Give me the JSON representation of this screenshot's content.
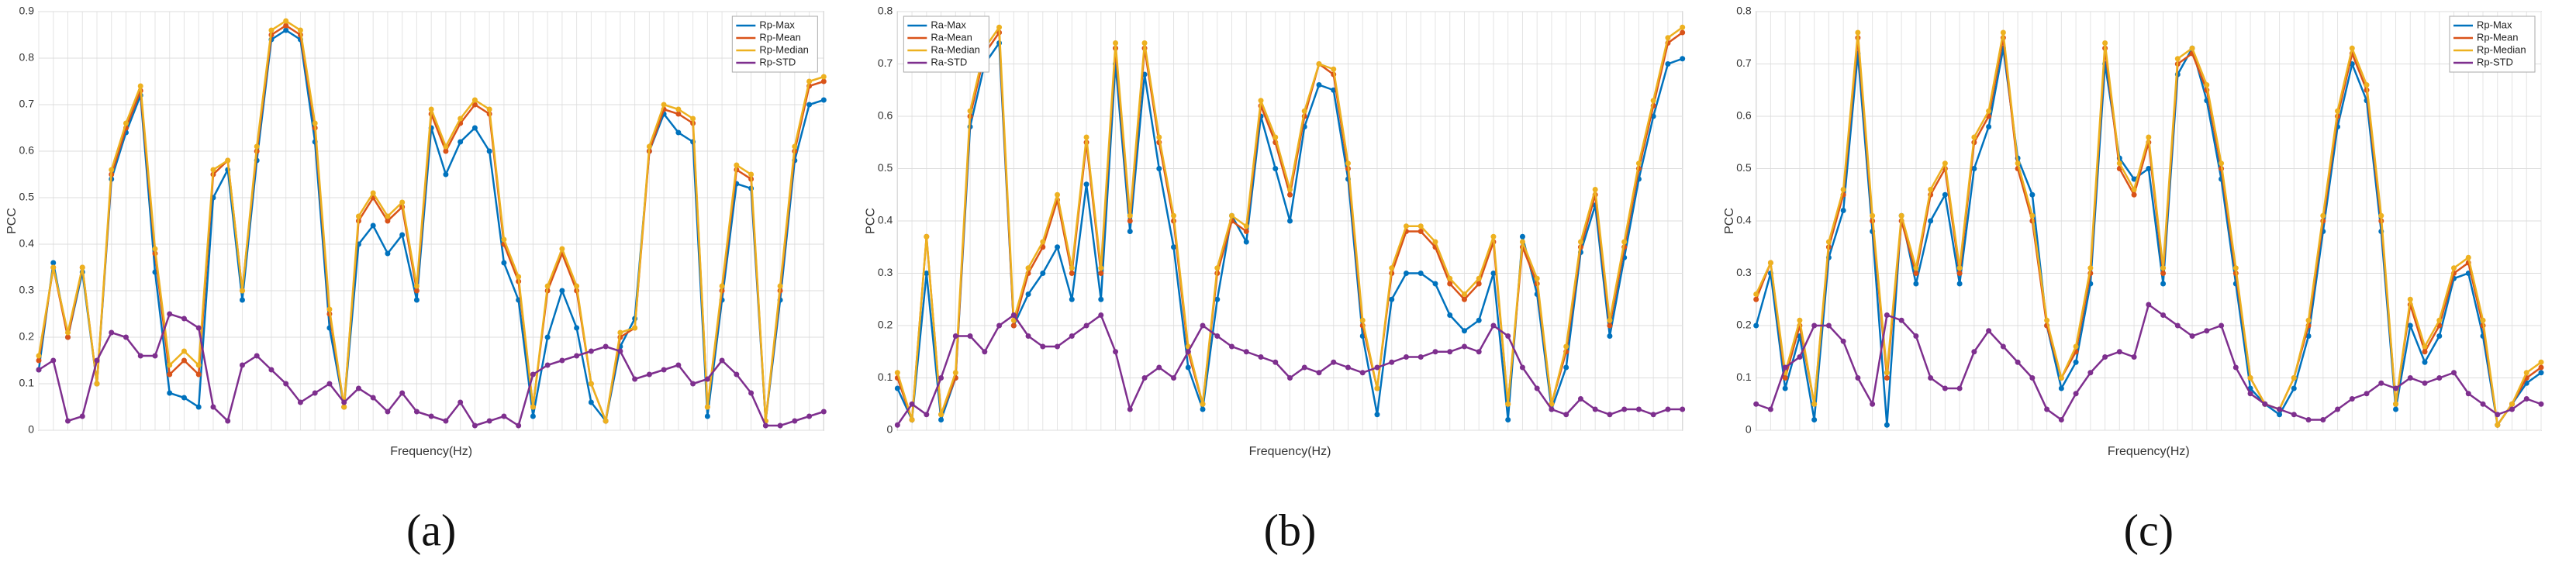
{
  "chart_data": [
    {
      "type": "line",
      "caption": "(a)",
      "ylabel": "PCC",
      "xlabel": "Frequency(Hz)",
      "ylim": [
        0,
        0.9
      ],
      "yticks": [
        0,
        0.1,
        0.2,
        0.3,
        0.4,
        0.5,
        0.6,
        0.7,
        0.8,
        0.9
      ],
      "grid": true,
      "legend": "top-right",
      "series": [
        {
          "name": "Rp-Max",
          "color": "#0072bd",
          "values": [
            0.13,
            0.36,
            0.2,
            0.34,
            0.1,
            0.54,
            0.64,
            0.72,
            0.34,
            0.08,
            0.07,
            0.05,
            0.5,
            0.56,
            0.28,
            0.58,
            0.84,
            0.86,
            0.84,
            0.62,
            0.22,
            0.05,
            0.4,
            0.44,
            0.38,
            0.42,
            0.28,
            0.65,
            0.55,
            0.62,
            0.65,
            0.6,
            0.36,
            0.28,
            0.03,
            0.2,
            0.3,
            0.22,
            0.06,
            0.02,
            0.18,
            0.24,
            0.6,
            0.68,
            0.64,
            0.62,
            0.03,
            0.28,
            0.53,
            0.52,
            0.02,
            0.28,
            0.58,
            0.7,
            0.71
          ]
        },
        {
          "name": "Rp-Mean",
          "color": "#d95319",
          "values": [
            0.15,
            0.35,
            0.2,
            0.35,
            0.1,
            0.55,
            0.65,
            0.73,
            0.38,
            0.12,
            0.15,
            0.12,
            0.55,
            0.58,
            0.3,
            0.6,
            0.85,
            0.87,
            0.85,
            0.65,
            0.25,
            0.05,
            0.45,
            0.5,
            0.45,
            0.48,
            0.3,
            0.68,
            0.6,
            0.66,
            0.7,
            0.68,
            0.4,
            0.32,
            0.05,
            0.3,
            0.38,
            0.3,
            0.1,
            0.02,
            0.2,
            0.22,
            0.6,
            0.69,
            0.68,
            0.66,
            0.05,
            0.3,
            0.56,
            0.54,
            0.02,
            0.3,
            0.6,
            0.74,
            0.75
          ]
        },
        {
          "name": "Rp-Median",
          "color": "#edb120",
          "values": [
            0.16,
            0.35,
            0.21,
            0.35,
            0.1,
            0.56,
            0.66,
            0.74,
            0.39,
            0.14,
            0.17,
            0.14,
            0.56,
            0.58,
            0.3,
            0.61,
            0.86,
            0.88,
            0.86,
            0.66,
            0.26,
            0.05,
            0.46,
            0.51,
            0.46,
            0.49,
            0.31,
            0.69,
            0.61,
            0.67,
            0.71,
            0.69,
            0.41,
            0.33,
            0.05,
            0.31,
            0.39,
            0.31,
            0.1,
            0.02,
            0.21,
            0.22,
            0.61,
            0.7,
            0.69,
            0.67,
            0.05,
            0.31,
            0.57,
            0.55,
            0.02,
            0.31,
            0.61,
            0.75,
            0.76
          ]
        },
        {
          "name": "Rp-STD",
          "color": "#7e2f8e",
          "values": [
            0.13,
            0.15,
            0.02,
            0.03,
            0.15,
            0.21,
            0.2,
            0.16,
            0.16,
            0.25,
            0.24,
            0.22,
            0.05,
            0.02,
            0.14,
            0.16,
            0.13,
            0.1,
            0.06,
            0.08,
            0.1,
            0.06,
            0.09,
            0.07,
            0.04,
            0.08,
            0.04,
            0.03,
            0.02,
            0.06,
            0.01,
            0.02,
            0.03,
            0.01,
            0.12,
            0.14,
            0.15,
            0.16,
            0.17,
            0.18,
            0.17,
            0.11,
            0.12,
            0.13,
            0.14,
            0.1,
            0.11,
            0.15,
            0.12,
            0.08,
            0.01,
            0.01,
            0.02,
            0.03,
            0.04
          ]
        }
      ]
    },
    {
      "type": "line",
      "caption": "(b)",
      "ylabel": "PCC",
      "xlabel": "Frequency(Hz)",
      "ylim": [
        0,
        0.8
      ],
      "yticks": [
        0,
        0.1,
        0.2,
        0.3,
        0.4,
        0.5,
        0.6,
        0.7,
        0.8
      ],
      "grid": true,
      "legend": "top-left",
      "series": [
        {
          "name": "Ra-Max",
          "color": "#0072bd",
          "values": [
            0.08,
            0.02,
            0.3,
            0.02,
            0.1,
            0.58,
            0.7,
            0.74,
            0.2,
            0.26,
            0.3,
            0.35,
            0.25,
            0.47,
            0.25,
            0.7,
            0.38,
            0.68,
            0.5,
            0.35,
            0.12,
            0.04,
            0.25,
            0.41,
            0.36,
            0.6,
            0.5,
            0.4,
            0.58,
            0.66,
            0.65,
            0.48,
            0.18,
            0.03,
            0.25,
            0.3,
            0.3,
            0.28,
            0.22,
            0.19,
            0.21,
            0.3,
            0.02,
            0.37,
            0.26,
            0.04,
            0.12,
            0.34,
            0.43,
            0.18,
            0.33,
            0.48,
            0.6,
            0.7,
            0.71
          ]
        },
        {
          "name": "Ra-Mean",
          "color": "#d95319",
          "values": [
            0.1,
            0.02,
            0.37,
            0.03,
            0.1,
            0.6,
            0.72,
            0.76,
            0.2,
            0.3,
            0.35,
            0.44,
            0.3,
            0.55,
            0.3,
            0.73,
            0.4,
            0.73,
            0.55,
            0.4,
            0.15,
            0.05,
            0.3,
            0.4,
            0.38,
            0.62,
            0.55,
            0.45,
            0.6,
            0.7,
            0.68,
            0.5,
            0.2,
            0.08,
            0.3,
            0.38,
            0.38,
            0.35,
            0.28,
            0.25,
            0.28,
            0.36,
            0.05,
            0.35,
            0.28,
            0.05,
            0.15,
            0.35,
            0.45,
            0.2,
            0.35,
            0.5,
            0.62,
            0.74,
            0.76
          ]
        },
        {
          "name": "Ra-Median",
          "color": "#edb120",
          "values": [
            0.11,
            0.02,
            0.37,
            0.03,
            0.11,
            0.61,
            0.73,
            0.77,
            0.21,
            0.31,
            0.36,
            0.45,
            0.31,
            0.56,
            0.31,
            0.74,
            0.41,
            0.74,
            0.56,
            0.41,
            0.16,
            0.05,
            0.31,
            0.41,
            0.39,
            0.63,
            0.56,
            0.46,
            0.61,
            0.7,
            0.69,
            0.51,
            0.21,
            0.08,
            0.31,
            0.39,
            0.39,
            0.36,
            0.29,
            0.26,
            0.29,
            0.37,
            0.05,
            0.36,
            0.29,
            0.05,
            0.16,
            0.36,
            0.46,
            0.21,
            0.36,
            0.51,
            0.63,
            0.75,
            0.77
          ]
        },
        {
          "name": "Ra-STD",
          "color": "#7e2f8e",
          "values": [
            0.01,
            0.05,
            0.03,
            0.1,
            0.18,
            0.18,
            0.15,
            0.2,
            0.22,
            0.18,
            0.16,
            0.16,
            0.18,
            0.2,
            0.22,
            0.15,
            0.04,
            0.1,
            0.12,
            0.1,
            0.15,
            0.2,
            0.18,
            0.16,
            0.15,
            0.14,
            0.13,
            0.1,
            0.12,
            0.11,
            0.13,
            0.12,
            0.11,
            0.12,
            0.13,
            0.14,
            0.14,
            0.15,
            0.15,
            0.16,
            0.15,
            0.2,
            0.18,
            0.12,
            0.08,
            0.04,
            0.03,
            0.06,
            0.04,
            0.03,
            0.04,
            0.04,
            0.03,
            0.04,
            0.04
          ]
        }
      ]
    },
    {
      "type": "line",
      "caption": "(c)",
      "ylabel": "PCC",
      "xlabel": "Frequency(Hz)",
      "ylim": [
        0,
        0.8
      ],
      "yticks": [
        0,
        0.1,
        0.2,
        0.3,
        0.4,
        0.5,
        0.6,
        0.7,
        0.8
      ],
      "grid": true,
      "legend": "top-right",
      "series": [
        {
          "name": "Rp-Max",
          "color": "#0072bd",
          "values": [
            0.2,
            0.3,
            0.08,
            0.18,
            0.02,
            0.33,
            0.42,
            0.72,
            0.38,
            0.01,
            0.41,
            0.28,
            0.4,
            0.45,
            0.28,
            0.5,
            0.58,
            0.73,
            0.52,
            0.45,
            0.2,
            0.08,
            0.13,
            0.28,
            0.7,
            0.52,
            0.48,
            0.5,
            0.28,
            0.68,
            0.73,
            0.63,
            0.48,
            0.28,
            0.08,
            0.05,
            0.03,
            0.08,
            0.18,
            0.38,
            0.58,
            0.7,
            0.63,
            0.38,
            0.04,
            0.2,
            0.13,
            0.18,
            0.29,
            0.3,
            0.18,
            0.01,
            0.05,
            0.09,
            0.11
          ]
        },
        {
          "name": "Rp-Mean",
          "color": "#d95319",
          "values": [
            0.25,
            0.32,
            0.1,
            0.2,
            0.05,
            0.35,
            0.45,
            0.75,
            0.4,
            0.1,
            0.4,
            0.3,
            0.45,
            0.5,
            0.3,
            0.55,
            0.6,
            0.75,
            0.5,
            0.4,
            0.2,
            0.1,
            0.15,
            0.3,
            0.73,
            0.5,
            0.45,
            0.55,
            0.3,
            0.7,
            0.72,
            0.65,
            0.5,
            0.3,
            0.1,
            0.05,
            0.04,
            0.1,
            0.2,
            0.4,
            0.6,
            0.72,
            0.65,
            0.4,
            0.05,
            0.24,
            0.15,
            0.2,
            0.3,
            0.32,
            0.2,
            0.01,
            0.05,
            0.1,
            0.12
          ]
        },
        {
          "name": "Rp-Median",
          "color": "#edb120",
          "values": [
            0.26,
            0.32,
            0.11,
            0.21,
            0.05,
            0.36,
            0.46,
            0.76,
            0.41,
            0.11,
            0.41,
            0.31,
            0.46,
            0.51,
            0.31,
            0.56,
            0.61,
            0.76,
            0.51,
            0.41,
            0.21,
            0.1,
            0.16,
            0.31,
            0.74,
            0.51,
            0.46,
            0.56,
            0.31,
            0.71,
            0.73,
            0.66,
            0.51,
            0.31,
            0.1,
            0.05,
            0.04,
            0.1,
            0.21,
            0.41,
            0.61,
            0.73,
            0.66,
            0.41,
            0.05,
            0.25,
            0.16,
            0.21,
            0.31,
            0.33,
            0.21,
            0.01,
            0.05,
            0.11,
            0.13
          ]
        },
        {
          "name": "Rp-STD",
          "color": "#7e2f8e",
          "values": [
            0.05,
            0.04,
            0.12,
            0.14,
            0.2,
            0.2,
            0.17,
            0.1,
            0.05,
            0.22,
            0.21,
            0.18,
            0.1,
            0.08,
            0.08,
            0.15,
            0.19,
            0.16,
            0.13,
            0.1,
            0.04,
            0.02,
            0.07,
            0.11,
            0.14,
            0.15,
            0.14,
            0.24,
            0.22,
            0.2,
            0.18,
            0.19,
            0.2,
            0.12,
            0.07,
            0.05,
            0.04,
            0.03,
            0.02,
            0.02,
            0.04,
            0.06,
            0.07,
            0.09,
            0.08,
            0.1,
            0.09,
            0.1,
            0.11,
            0.07,
            0.05,
            0.03,
            0.04,
            0.06,
            0.05
          ]
        }
      ]
    }
  ]
}
